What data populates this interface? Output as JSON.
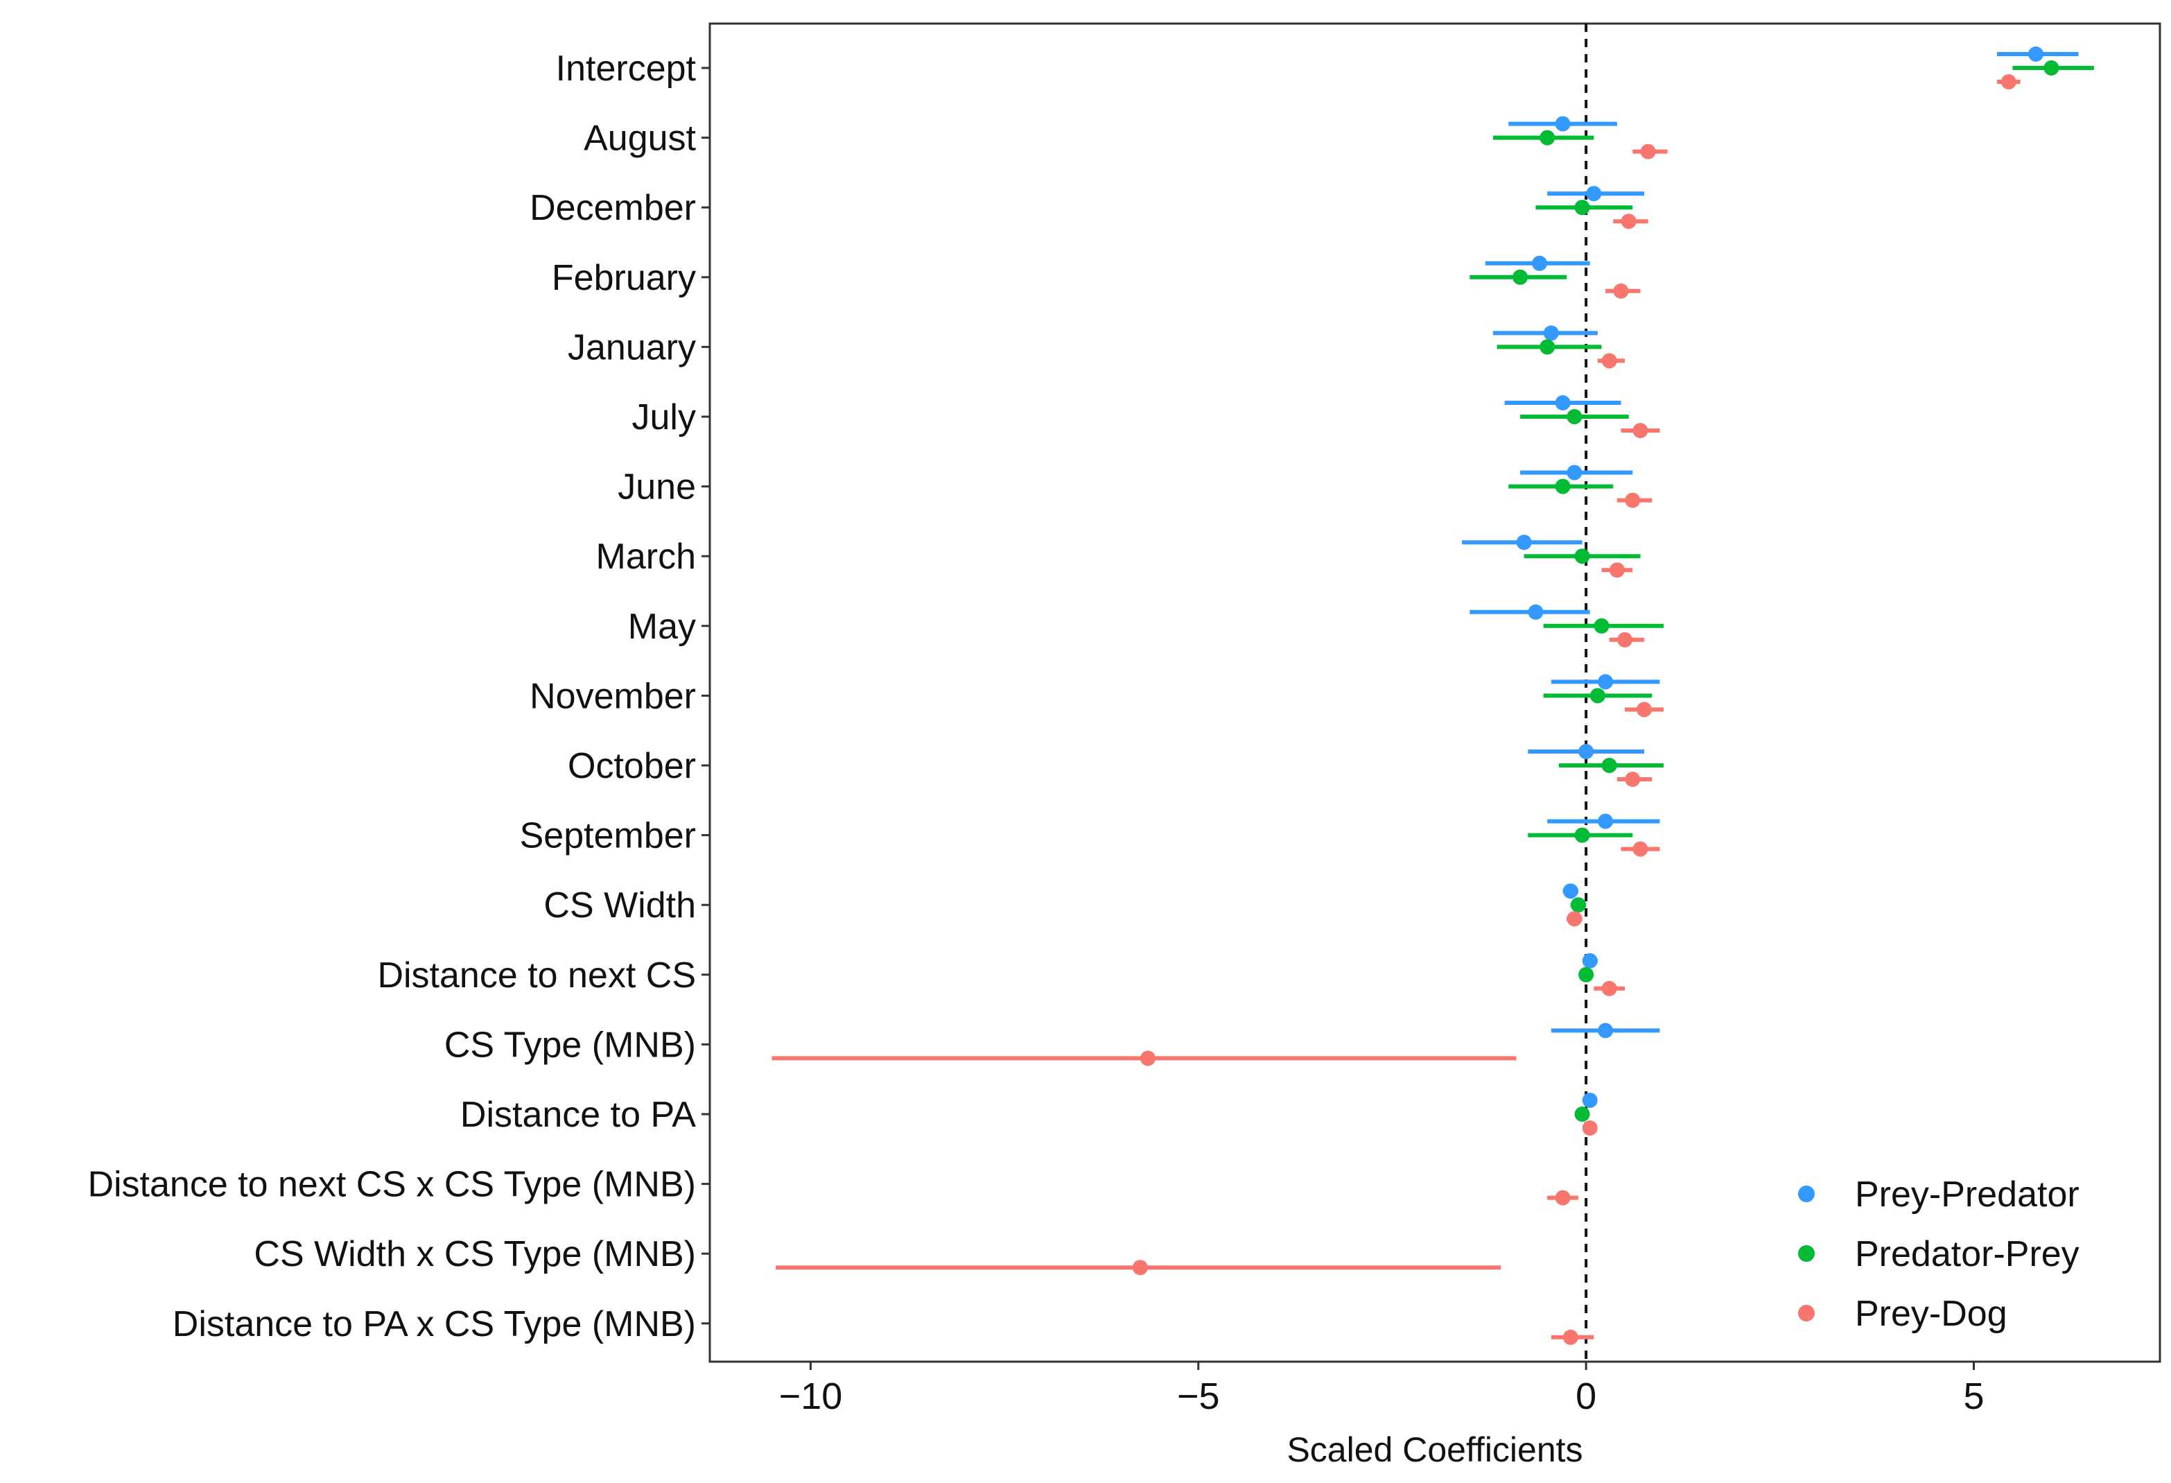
{
  "chart_data": {
    "type": "scatter",
    "subtype": "coefficient-plot",
    "title": "",
    "xlabel": "Scaled Coefficients",
    "ylabel": "",
    "xlim": [
      -11.3,
      7.4
    ],
    "xticks": [
      -10,
      -5,
      0,
      5
    ],
    "xtick_labels": [
      "−10",
      "−5",
      "0",
      "5"
    ],
    "reference_line_x": 0,
    "grid": false,
    "legend_position": "bottom-right",
    "categories": [
      "Intercept",
      "August",
      "December",
      "February",
      "January",
      "July",
      "June",
      "March",
      "May",
      "November",
      "October",
      "September",
      "CS Width",
      "Distance to next CS",
      "CS Type (MNB)",
      "Distance to PA",
      "Distance to next CS x CS Type (MNB)",
      "CS Width x CS Type (MNB)",
      "Distance to PA x CS Type (MNB)"
    ],
    "series": [
      {
        "name": "Prey-Predator",
        "color": "#3399ff",
        "estimates": [
          5.8,
          -0.3,
          0.1,
          -0.6,
          -0.45,
          -0.3,
          -0.15,
          -0.8,
          -0.65,
          0.25,
          0.0,
          0.25,
          -0.2,
          0.05,
          0.25,
          0.05,
          null,
          null,
          null
        ],
        "lower": [
          5.3,
          -1.0,
          -0.5,
          -1.3,
          -1.2,
          -1.05,
          -0.85,
          -1.6,
          -1.5,
          -0.45,
          -0.75,
          -0.5,
          -0.3,
          0.0,
          -0.45,
          0.0,
          null,
          null,
          null
        ],
        "upper": [
          6.35,
          0.4,
          0.75,
          0.05,
          0.15,
          0.45,
          0.6,
          -0.05,
          0.05,
          0.95,
          0.75,
          0.95,
          -0.1,
          0.15,
          0.95,
          0.1,
          null,
          null,
          null
        ]
      },
      {
        "name": "Predator-Prey",
        "color": "#00bb33",
        "estimates": [
          6.0,
          -0.5,
          -0.05,
          -0.85,
          -0.5,
          -0.15,
          -0.3,
          -0.05,
          0.2,
          0.15,
          0.3,
          -0.05,
          -0.1,
          0.0,
          null,
          -0.05,
          null,
          null,
          null
        ],
        "lower": [
          5.5,
          -1.2,
          -0.65,
          -1.5,
          -1.15,
          -0.85,
          -1.0,
          -0.8,
          -0.55,
          -0.55,
          -0.35,
          -0.75,
          -0.2,
          -0.05,
          null,
          -0.12,
          null,
          null,
          null
        ],
        "upper": [
          6.55,
          0.1,
          0.6,
          -0.25,
          0.2,
          0.55,
          0.35,
          0.7,
          1.0,
          0.85,
          1.0,
          0.6,
          0.0,
          0.05,
          null,
          0.02,
          null,
          null,
          null
        ]
      },
      {
        "name": "Prey-Dog",
        "color": "#f8766d",
        "estimates": [
          5.45,
          0.8,
          0.55,
          0.45,
          0.3,
          0.7,
          0.6,
          0.4,
          0.5,
          0.75,
          0.6,
          0.7,
          -0.15,
          0.3,
          -5.65,
          0.05,
          -0.3,
          -5.75,
          -0.2
        ],
        "lower": [
          5.3,
          0.6,
          0.35,
          0.25,
          0.15,
          0.45,
          0.4,
          0.2,
          0.3,
          0.5,
          0.4,
          0.45,
          -0.25,
          0.1,
          -10.5,
          0.0,
          -0.5,
          -10.45,
          -0.45
        ],
        "upper": [
          5.6,
          1.05,
          0.8,
          0.7,
          0.5,
          0.95,
          0.85,
          0.6,
          0.75,
          1.0,
          0.85,
          0.95,
          -0.05,
          0.5,
          -0.9,
          0.1,
          -0.1,
          -1.1,
          0.1
        ]
      }
    ]
  }
}
